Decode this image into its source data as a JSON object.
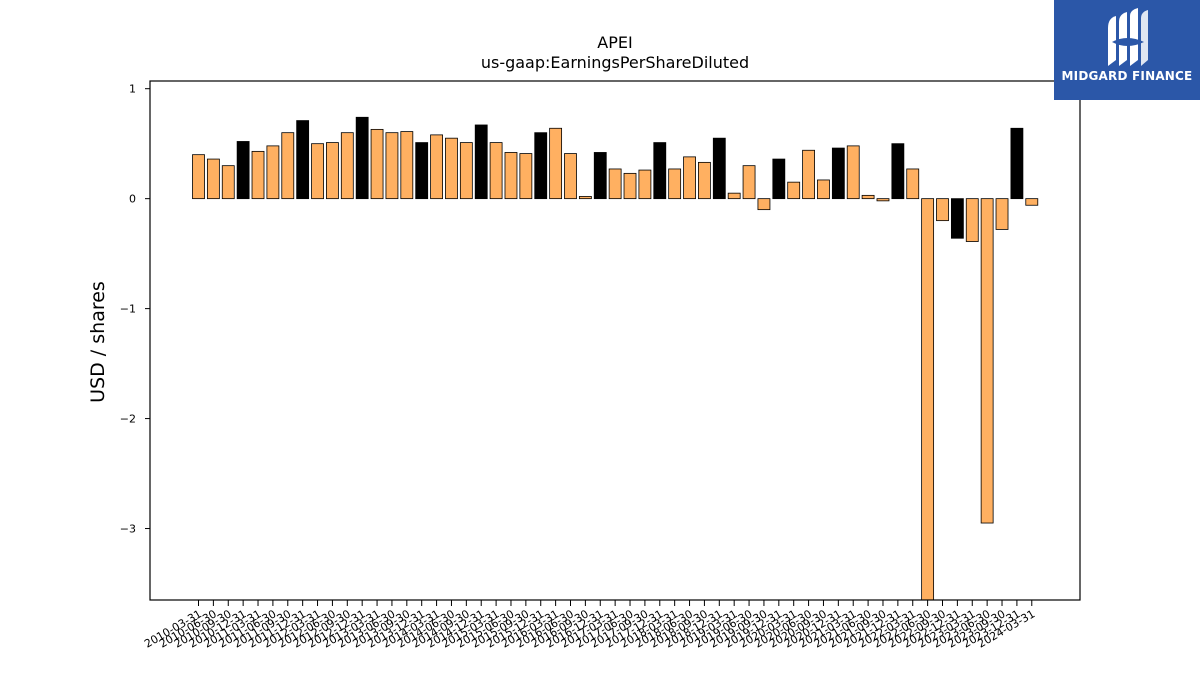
{
  "brand": {
    "name": "MIDGARD FINANCE",
    "bg_color": "#2b57a8"
  },
  "chart_data": {
    "type": "bar",
    "title": "APEI",
    "subtitle": "us-gaap:EarningsPerShareDiluted",
    "xlabel": "",
    "ylabel": "USD / shares",
    "ylim": [
      -3.65,
      1.07
    ],
    "yticks": [
      1,
      0,
      -1,
      -2,
      -3
    ],
    "ytick_labels": [
      "1",
      "0",
      "−1",
      "−2",
      "−3"
    ],
    "grid": false,
    "colors": {
      "default": "#ffb061",
      "highlight": "#000000"
    },
    "categories": [
      "2010-03-31",
      "2010-06-30",
      "2010-09-30",
      "2010-12-31",
      "2011-03-31",
      "2011-06-30",
      "2011-09-30",
      "2011-12-31",
      "2012-03-31",
      "2012-06-30",
      "2012-09-30",
      "2012-12-31",
      "2013-03-31",
      "2013-06-30",
      "2013-09-30",
      "2013-12-31",
      "2014-03-31",
      "2014-06-30",
      "2014-09-30",
      "2014-12-31",
      "2015-03-31",
      "2015-06-30",
      "2015-09-30",
      "2015-12-31",
      "2016-03-31",
      "2016-06-30",
      "2016-09-30",
      "2016-12-31",
      "2017-03-31",
      "2017-06-30",
      "2017-09-30",
      "2017-12-31",
      "2018-03-31",
      "2018-06-30",
      "2018-09-30",
      "2018-12-31",
      "2019-03-31",
      "2019-06-30",
      "2019-09-30",
      "2019-12-31",
      "2020-03-31",
      "2020-06-30",
      "2020-09-30",
      "2020-12-31",
      "2021-03-31",
      "2021-06-30",
      "2021-09-30",
      "2021-12-31",
      "2022-03-31",
      "2022-06-30",
      "2022-09-30",
      "2022-12-31",
      "2023-03-31",
      "2023-06-30",
      "2023-09-30",
      "2023-12-31",
      "2024-03-31"
    ],
    "values": [
      0.4,
      0.36,
      0.3,
      0.52,
      0.43,
      0.48,
      0.6,
      0.71,
      0.5,
      0.51,
      0.6,
      0.74,
      0.63,
      0.6,
      0.61,
      0.51,
      0.58,
      0.55,
      0.51,
      0.67,
      0.51,
      0.42,
      0.41,
      0.6,
      0.64,
      0.41,
      0.02,
      0.42,
      0.27,
      0.23,
      0.26,
      0.51,
      0.27,
      0.38,
      0.33,
      0.55,
      0.05,
      0.3,
      -0.1,
      0.36,
      0.15,
      0.44,
      0.17,
      0.46,
      0.48,
      0.03,
      -0.02,
      0.5,
      0.27,
      -3.65,
      -0.2,
      -0.36,
      -0.39,
      -2.95,
      -0.28,
      0.64,
      -0.06
    ],
    "highlight": [
      false,
      false,
      false,
      true,
      false,
      false,
      false,
      true,
      false,
      false,
      false,
      true,
      false,
      false,
      false,
      true,
      false,
      false,
      false,
      true,
      false,
      false,
      false,
      true,
      false,
      false,
      false,
      true,
      false,
      false,
      false,
      true,
      false,
      false,
      false,
      true,
      false,
      false,
      false,
      true,
      false,
      false,
      false,
      true,
      false,
      false,
      false,
      true,
      false,
      false,
      false,
      true,
      false,
      false,
      false,
      true,
      false
    ]
  }
}
